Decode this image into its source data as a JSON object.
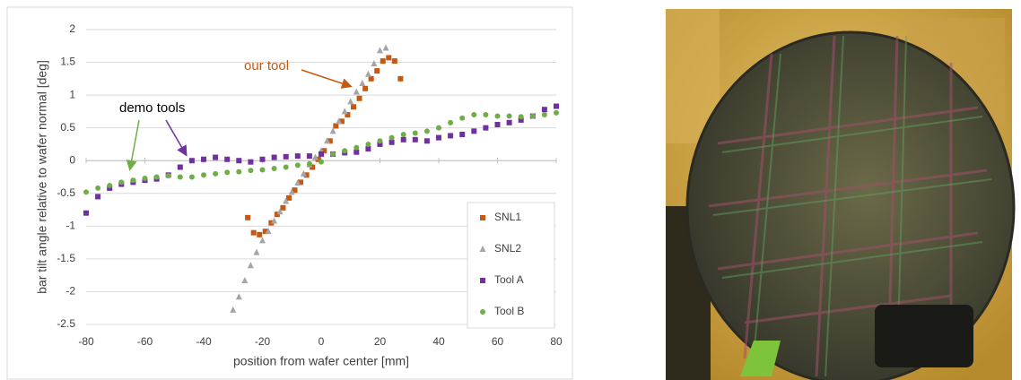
{
  "chart_data": {
    "type": "scatter",
    "x_label": "position from wafer center [mm]",
    "y_label": "bar tilt angle relative to wafer normal [deg]",
    "xlim": [
      -80,
      80
    ],
    "xticks": [
      -80,
      -60,
      -40,
      -20,
      0,
      20,
      40,
      60,
      80
    ],
    "ylim": [
      -2.5,
      2
    ],
    "yticks": [
      -2.5,
      -2,
      -1.5,
      -1,
      -0.5,
      0,
      0.5,
      1,
      1.5,
      2
    ],
    "grid": true,
    "legend": "lower right",
    "annotations": [
      {
        "text": "our tool",
        "color": "#c65911"
      },
      {
        "text": "demo tools",
        "color": "#000000"
      }
    ],
    "series": [
      {
        "name": "SNL1",
        "color": "#c65911",
        "marker": "square",
        "x": [
          -25,
          -23,
          -21,
          -19,
          -17,
          -15,
          -13,
          -11,
          -9,
          -7,
          -5,
          -3,
          -1,
          1,
          3,
          5,
          7,
          9,
          11,
          13,
          15,
          17,
          19,
          21,
          23,
          25,
          27
        ],
        "values": [
          -0.87,
          -1.1,
          -1.13,
          -1.08,
          -0.95,
          -0.82,
          -0.72,
          -0.57,
          -0.45,
          -0.33,
          -0.22,
          -0.1,
          0.02,
          0.15,
          0.3,
          0.53,
          0.6,
          0.7,
          0.82,
          0.95,
          1.1,
          1.25,
          1.37,
          1.52,
          1.57,
          1.52,
          1.25
        ]
      },
      {
        "name": "SNL2",
        "color": "#a5a5a5",
        "marker": "triangle",
        "x": [
          -30,
          -28,
          -26,
          -24,
          -22,
          -20,
          -18,
          -16,
          -14,
          -12,
          -10,
          -8,
          -6,
          -4,
          -2,
          0,
          2,
          4,
          6,
          8,
          10,
          12,
          14,
          16,
          18,
          20,
          22
        ],
        "values": [
          -2.28,
          -2.08,
          -1.83,
          -1.6,
          -1.4,
          -1.22,
          -1.08,
          -0.92,
          -0.78,
          -0.62,
          -0.48,
          -0.34,
          -0.2,
          -0.06,
          0.05,
          0.15,
          0.3,
          0.45,
          0.6,
          0.75,
          0.9,
          1.05,
          1.18,
          1.32,
          1.48,
          1.68,
          1.72
        ]
      },
      {
        "name": "Tool A",
        "color": "#7030a0",
        "marker": "square",
        "x": [
          -80,
          -76,
          -72,
          -68,
          -64,
          -60,
          -56,
          -52,
          -48,
          -44,
          -40,
          -36,
          -32,
          -28,
          -24,
          -20,
          -16,
          -12,
          -8,
          -4,
          0,
          4,
          8,
          12,
          16,
          20,
          24,
          28,
          32,
          36,
          40,
          44,
          48,
          52,
          56,
          60,
          64,
          68,
          72,
          76,
          80
        ],
        "values": [
          -0.8,
          -0.55,
          -0.42,
          -0.36,
          -0.33,
          -0.3,
          -0.28,
          -0.22,
          -0.1,
          0,
          0.02,
          0.05,
          0.02,
          0,
          -0.02,
          0.02,
          0.05,
          0.06,
          0.07,
          0.07,
          0.1,
          0.1,
          0.12,
          0.13,
          0.18,
          0.25,
          0.28,
          0.32,
          0.32,
          0.3,
          0.35,
          0.38,
          0.4,
          0.45,
          0.5,
          0.55,
          0.58,
          0.62,
          0.68,
          0.78,
          0.83
        ]
      },
      {
        "name": "Tool B",
        "color": "#70ad47",
        "marker": "circle",
        "x": [
          -80,
          -76,
          -72,
          -68,
          -64,
          -60,
          -56,
          -52,
          -48,
          -44,
          -40,
          -36,
          -32,
          -28,
          -24,
          -20,
          -16,
          -12,
          -8,
          -4,
          0,
          4,
          8,
          12,
          16,
          20,
          24,
          28,
          32,
          36,
          40,
          44,
          48,
          52,
          56,
          60,
          64,
          68,
          72,
          76,
          80
        ],
        "values": [
          -0.48,
          -0.42,
          -0.38,
          -0.33,
          -0.3,
          -0.27,
          -0.25,
          -0.23,
          -0.25,
          -0.25,
          -0.22,
          -0.2,
          -0.18,
          -0.17,
          -0.15,
          -0.14,
          -0.12,
          -0.1,
          -0.07,
          -0.05,
          -0.02,
          0.1,
          0.15,
          0.2,
          0.25,
          0.3,
          0.35,
          0.4,
          0.42,
          0.45,
          0.5,
          0.58,
          0.65,
          0.7,
          0.7,
          0.68,
          0.68,
          0.67,
          0.68,
          0.7,
          0.73
        ]
      }
    ]
  }
}
